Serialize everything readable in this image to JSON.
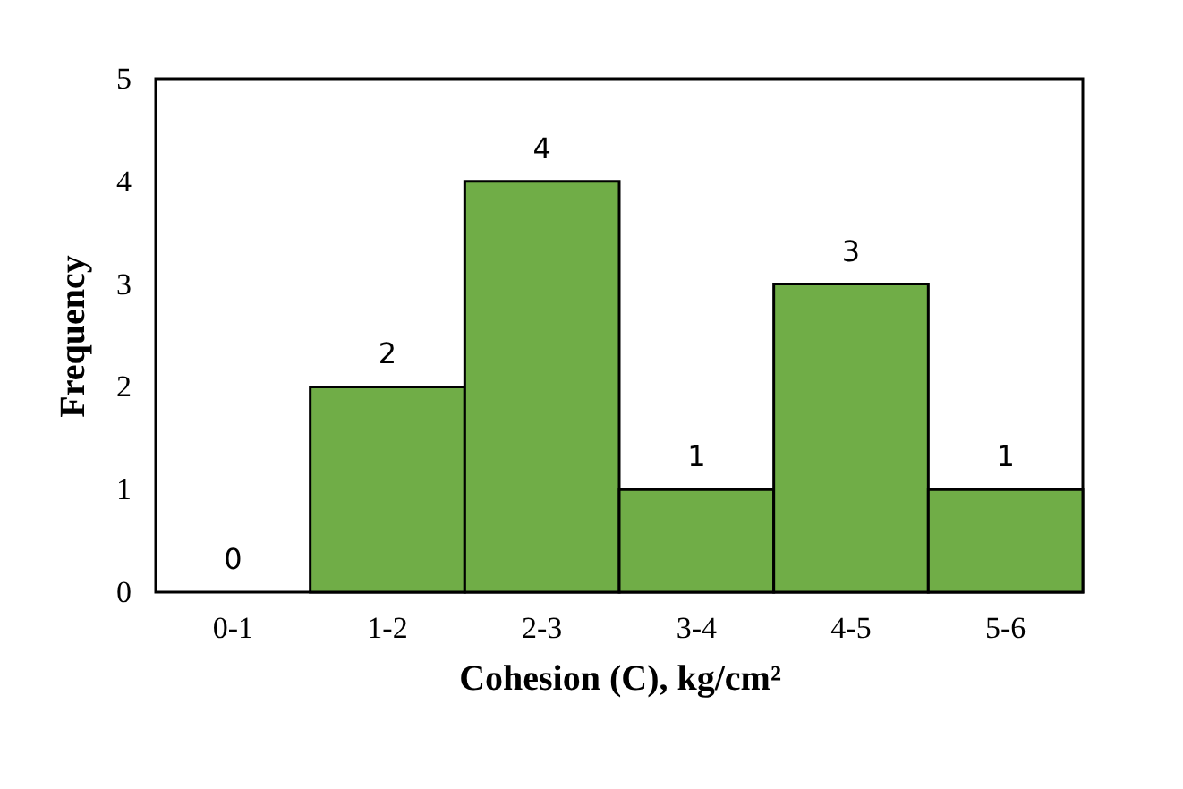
{
  "chart_data": {
    "type": "bar",
    "xlabel": "Cohesion (C), kg/cm²",
    "ylabel": "Frequency",
    "categories": [
      "0-1",
      "1-2",
      "2-3",
      "3-4",
      "4-5",
      "5-6"
    ],
    "values": [
      0,
      2,
      4,
      1,
      3,
      1
    ],
    "color": "#70ad47",
    "ylim": [
      0,
      5
    ],
    "yticks": [
      0,
      1,
      2,
      3,
      4,
      5
    ],
    "grid": false,
    "data_labels": true
  }
}
